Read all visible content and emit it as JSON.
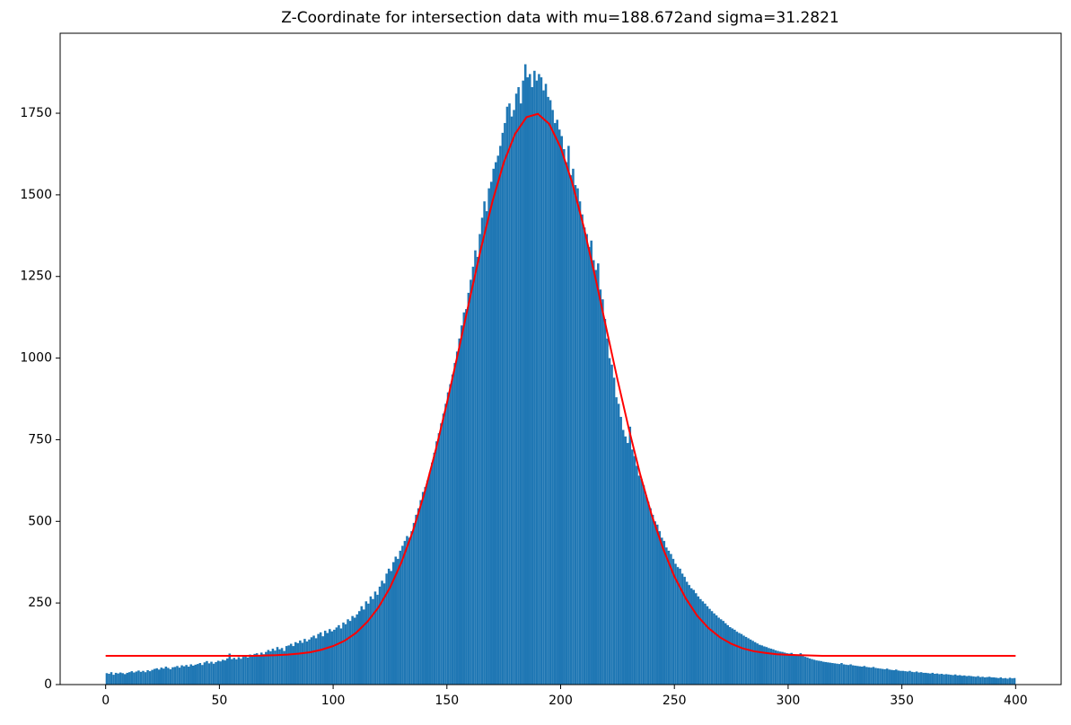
{
  "chart_data": {
    "type": "histogram",
    "title": "Z-Coordinate for intersection data with mu=188.672and sigma=31.2821",
    "color": "#1f77b4",
    "bins": [
      0,
      1,
      2,
      3,
      4,
      5,
      6,
      7,
      8,
      9,
      10,
      11,
      12,
      13,
      14,
      15,
      16,
      17,
      18,
      19,
      20,
      21,
      22,
      23,
      24,
      25,
      26,
      27,
      28,
      29,
      30,
      31,
      32,
      33,
      34,
      35,
      36,
      37,
      38,
      39,
      40,
      41,
      42,
      43,
      44,
      45,
      46,
      47,
      48,
      49,
      50,
      51,
      52,
      53,
      54,
      55,
      56,
      57,
      58,
      59,
      60,
      61,
      62,
      63,
      64,
      65,
      66,
      67,
      68,
      69,
      70,
      71,
      72,
      73,
      74,
      75,
      76,
      77,
      78,
      79,
      80,
      81,
      82,
      83,
      84,
      85,
      86,
      87,
      88,
      89,
      90,
      91,
      92,
      93,
      94,
      95,
      96,
      97,
      98,
      99,
      100,
      101,
      102,
      103,
      104,
      105,
      106,
      107,
      108,
      109,
      110,
      111,
      112,
      113,
      114,
      115,
      116,
      117,
      118,
      119,
      120,
      121,
      122,
      123,
      124,
      125,
      126,
      127,
      128,
      129,
      130,
      131,
      132,
      133,
      134,
      135,
      136,
      137,
      138,
      139,
      140,
      141,
      142,
      143,
      144,
      145,
      146,
      147,
      148,
      149,
      150,
      151,
      152,
      153,
      154,
      155,
      156,
      157,
      158,
      159,
      160,
      161,
      162,
      163,
      164,
      165,
      166,
      167,
      168,
      169,
      170,
      171,
      172,
      173,
      174,
      175,
      176,
      177,
      178,
      179,
      180,
      181,
      182,
      183,
      184,
      185,
      186,
      187,
      188,
      189,
      190,
      191,
      192,
      193,
      194,
      195,
      196,
      197,
      198,
      199,
      200,
      201,
      202,
      203,
      204,
      205,
      206,
      207,
      208,
      209,
      210,
      211,
      212,
      213,
      214,
      215,
      216,
      217,
      218,
      219,
      220,
      221,
      222,
      223,
      224,
      225,
      226,
      227,
      228,
      229,
      230,
      231,
      232,
      233,
      234,
      235,
      236,
      237,
      238,
      239,
      240,
      241,
      242,
      243,
      244,
      245,
      246,
      247,
      248,
      249,
      250,
      251,
      252,
      253,
      254,
      255,
      256,
      257,
      258,
      259,
      260,
      261,
      262,
      263,
      264,
      265,
      266,
      267,
      268,
      269,
      270,
      271,
      272,
      273,
      274,
      275,
      276,
      277,
      278,
      279,
      280,
      281,
      282,
      283,
      284,
      285,
      286,
      287,
      288,
      289,
      290,
      291,
      292,
      293,
      294,
      295,
      296,
      297,
      298,
      299,
      300,
      301,
      302,
      303,
      304,
      305,
      306,
      307,
      308,
      309,
      310,
      311,
      312,
      313,
      314,
      315,
      316,
      317,
      318,
      319,
      320,
      321,
      322,
      323,
      324,
      325,
      326,
      327,
      328,
      329,
      330,
      331,
      332,
      333,
      334,
      335,
      336,
      337,
      338,
      339,
      340,
      341,
      342,
      343,
      344,
      345,
      346,
      347,
      348,
      349,
      350,
      351,
      352,
      353,
      354,
      355,
      356,
      357,
      358,
      359,
      360,
      361,
      362,
      363,
      364,
      365,
      366,
      367,
      368,
      369,
      370,
      371,
      372,
      373,
      374,
      375,
      376,
      377,
      378,
      379,
      380,
      381,
      382,
      383,
      384,
      385,
      386,
      387,
      388,
      389,
      390,
      391,
      392,
      393,
      394,
      395,
      396,
      397,
      398,
      399,
      400
    ],
    "counts": [
      35,
      33,
      38,
      30,
      36,
      34,
      37,
      35,
      32,
      36,
      38,
      41,
      37,
      40,
      43,
      39,
      42,
      38,
      44,
      41,
      45,
      48,
      50,
      46,
      52,
      49,
      55,
      51,
      47,
      53,
      54,
      57,
      52,
      59,
      56,
      60,
      55,
      62,
      58,
      61,
      63,
      66,
      60,
      68,
      72,
      65,
      70,
      64,
      69,
      73,
      71,
      76,
      74,
      80,
      95,
      78,
      82,
      77,
      84,
      79,
      85,
      88,
      83,
      92,
      87,
      94,
      96,
      90,
      98,
      93,
      100,
      106,
      102,
      110,
      104,
      115,
      108,
      112,
      103,
      118,
      120,
      125,
      118,
      130,
      127,
      135,
      128,
      140,
      132,
      138,
      145,
      150,
      142,
      155,
      160,
      148,
      165,
      158,
      170,
      163,
      168,
      175,
      182,
      172,
      190,
      185,
      200,
      195,
      210,
      205,
      215,
      225,
      240,
      230,
      255,
      248,
      270,
      262,
      285,
      275,
      300,
      318,
      310,
      340,
      355,
      348,
      375,
      392,
      385,
      410,
      425,
      440,
      455,
      450,
      470,
      495,
      520,
      540,
      565,
      590,
      605,
      625,
      650,
      680,
      710,
      745,
      770,
      800,
      830,
      860,
      895,
      920,
      950,
      985,
      1020,
      1060,
      1100,
      1140,
      1150,
      1200,
      1240,
      1280,
      1330,
      1310,
      1380,
      1430,
      1480,
      1450,
      1520,
      1540,
      1580,
      1600,
      1620,
      1650,
      1690,
      1720,
      1770,
      1780,
      1740,
      1760,
      1810,
      1830,
      1780,
      1850,
      1900,
      1860,
      1870,
      1830,
      1880,
      1850,
      1870,
      1860,
      1820,
      1840,
      1800,
      1790,
      1760,
      1720,
      1730,
      1700,
      1680,
      1640,
      1600,
      1650,
      1560,
      1580,
      1530,
      1520,
      1480,
      1440,
      1400,
      1380,
      1340,
      1360,
      1300,
      1270,
      1290,
      1210,
      1180,
      1120,
      1060,
      1000,
      980,
      940,
      880,
      860,
      820,
      780,
      760,
      740,
      790,
      720,
      700,
      670,
      640,
      630,
      610,
      580,
      560,
      540,
      520,
      500,
      490,
      470,
      450,
      440,
      420,
      410,
      400,
      385,
      370,
      360,
      355,
      340,
      330,
      315,
      305,
      295,
      290,
      280,
      270,
      262,
      255,
      248,
      240,
      232,
      225,
      218,
      212,
      205,
      200,
      195,
      188,
      182,
      176,
      172,
      168,
      162,
      158,
      155,
      150,
      146,
      142,
      138,
      134,
      130,
      126,
      122,
      120,
      117,
      115,
      112,
      110,
      108,
      105,
      103,
      101,
      100,
      98,
      96,
      95,
      97,
      93,
      92,
      90,
      96,
      88,
      85,
      83,
      80,
      78,
      76,
      74,
      73,
      72,
      70,
      69,
      68,
      67,
      66,
      65,
      64,
      63,
      66,
      62,
      61,
      60,
      62,
      59,
      58,
      57,
      56,
      55,
      57,
      54,
      53,
      52,
      54,
      51,
      50,
      49,
      48,
      47,
      49,
      46,
      45,
      44,
      46,
      43,
      42,
      42,
      41,
      40,
      42,
      39,
      38,
      40,
      37,
      38,
      36,
      36,
      35,
      34,
      36,
      33,
      34,
      32,
      33,
      31,
      32,
      31,
      30,
      29,
      31,
      28,
      29,
      27,
      28,
      26,
      27,
      26,
      25,
      24,
      26,
      23,
      24,
      22,
      23,
      24,
      22,
      22,
      21,
      20,
      22,
      19,
      20,
      18,
      21,
      19,
      20
    ],
    "curve": {
      "color": "#ff0000",
      "x": [
        0,
        5,
        10,
        15,
        20,
        25,
        30,
        35,
        40,
        45,
        50,
        55,
        60,
        65,
        70,
        75,
        80,
        85,
        90,
        95,
        100,
        105,
        110,
        115,
        120,
        125,
        130,
        135,
        140,
        145,
        150,
        155,
        160,
        165,
        170,
        175,
        180,
        185,
        190,
        195,
        200,
        205,
        210,
        215,
        220,
        225,
        230,
        235,
        240,
        245,
        250,
        255,
        260,
        265,
        270,
        275,
        280,
        285,
        290,
        295,
        300,
        305,
        310,
        315,
        320,
        325,
        330,
        335,
        340,
        345,
        350,
        355,
        360,
        365,
        370,
        375,
        380,
        385,
        390,
        395,
        400
      ],
      "values": [
        88,
        88,
        88,
        88,
        88,
        88,
        88,
        88,
        88,
        88,
        88,
        88,
        88,
        88,
        89,
        90,
        92,
        95,
        99,
        107,
        118,
        134,
        158,
        192,
        237,
        297,
        374,
        469,
        583,
        716,
        862,
        1019,
        1180,
        1336,
        1479,
        1599,
        1687,
        1738,
        1748,
        1717,
        1645,
        1539,
        1406,
        1255,
        1094,
        934,
        783,
        643,
        520,
        417,
        331,
        264,
        211,
        173,
        145,
        125,
        111,
        102,
        97,
        93,
        91,
        90,
        89,
        88,
        88,
        88,
        88,
        88,
        88,
        88,
        88,
        88,
        88,
        88,
        88,
        88,
        88,
        88,
        88,
        88,
        88
      ]
    },
    "xlim": [
      -20,
      420
    ],
    "xticks": [
      0,
      50,
      100,
      150,
      200,
      250,
      300,
      350,
      400
    ],
    "ylim": [
      0,
      1995
    ],
    "yticks": [
      0,
      250,
      500,
      750,
      1000,
      1250,
      1500,
      1750
    ]
  }
}
